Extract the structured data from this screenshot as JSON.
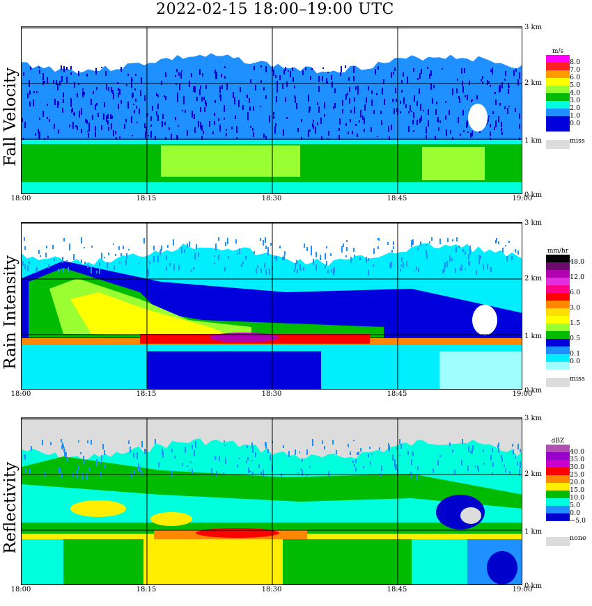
{
  "title": "2022-02-15   18:00–19:00 UTC",
  "x_ticks": [
    "18:00",
    "18:15",
    "18:30",
    "18:45",
    "19:00"
  ],
  "y_ticks": [
    "3 km",
    "2 km",
    "1 km",
    "0 km"
  ],
  "panels": [
    {
      "label": "Fall Velocity",
      "unit": "m/s",
      "legend_labels": [
        "8.0",
        "7.0",
        "6.0",
        "5.0",
        "4.0",
        "3.0",
        "2.0",
        "1.0",
        "0.0"
      ],
      "legend_colors": [
        "#ff00ff",
        "#ff2020",
        "#ff9900",
        "#ffff00",
        "#99ff33",
        "#00bb00",
        "#00ffdd",
        "#1e90ff",
        "#0000dd",
        "#0000dd"
      ],
      "missing_label": "miss"
    },
    {
      "label": "Rain Intensity",
      "unit": "mm/hr",
      "legend_labels": [
        "48.0",
        "",
        "12.0",
        "",
        "6.0",
        "",
        "3.0",
        "",
        "1.5",
        "",
        "0.5",
        "",
        "0.1",
        "0.0"
      ],
      "legend_colors": [
        "#000000",
        "#6a0a6a",
        "#b000b0",
        "#e030e0",
        "#ff0088",
        "#ff0000",
        "#ff8800",
        "#ffdd00",
        "#ffff00",
        "#99ff33",
        "#00bb00",
        "#0000dd",
        "#1e90ff",
        "#00eeff",
        "#9fffff"
      ],
      "missing_label": "miss"
    },
    {
      "label": "Reflectivity",
      "unit": "dBZ",
      "legend_labels": [
        "40.0",
        "35.0",
        "30.0",
        "25.0",
        "20.0",
        "15.0",
        "10.0",
        "5.0",
        "0.0",
        "−5.0"
      ],
      "legend_colors": [
        "#b050b0",
        "#9900cc",
        "#cc00cc",
        "#ff0000",
        "#ff8800",
        "#ffee00",
        "#00bb00",
        "#00ffdd",
        "#1e90ff",
        "#0000cc",
        "#ffffff"
      ],
      "missing_label": "none"
    }
  ],
  "colors": {
    "grid": "#000000",
    "fv_mid": "#1e90ff",
    "fv_high": "#0000dd",
    "fv_low": "#00bb00",
    "fv_lowb": "#99ff33",
    "fv_lowc": "#00ffdd",
    "ri_low": "#00eeff",
    "ri_lowb": "#9fffff",
    "ri_mid": "#0000dd",
    "ri_band": "#ff0000",
    "ri_band2": "#b000b0",
    "ri_yellow": "#ffff00",
    "ri_green": "#99ff33",
    "ri_green2": "#00bb00",
    "rf_bg": "#dcdcdc",
    "rf_yellow": "#ffee00",
    "rf_green": "#00bb00",
    "rf_cyan": "#00ffdd",
    "rf_sky": "#1e90ff",
    "rf_red": "#ff0000",
    "rf_orange": "#ff8800",
    "rf_navy": "#0000cc"
  }
}
